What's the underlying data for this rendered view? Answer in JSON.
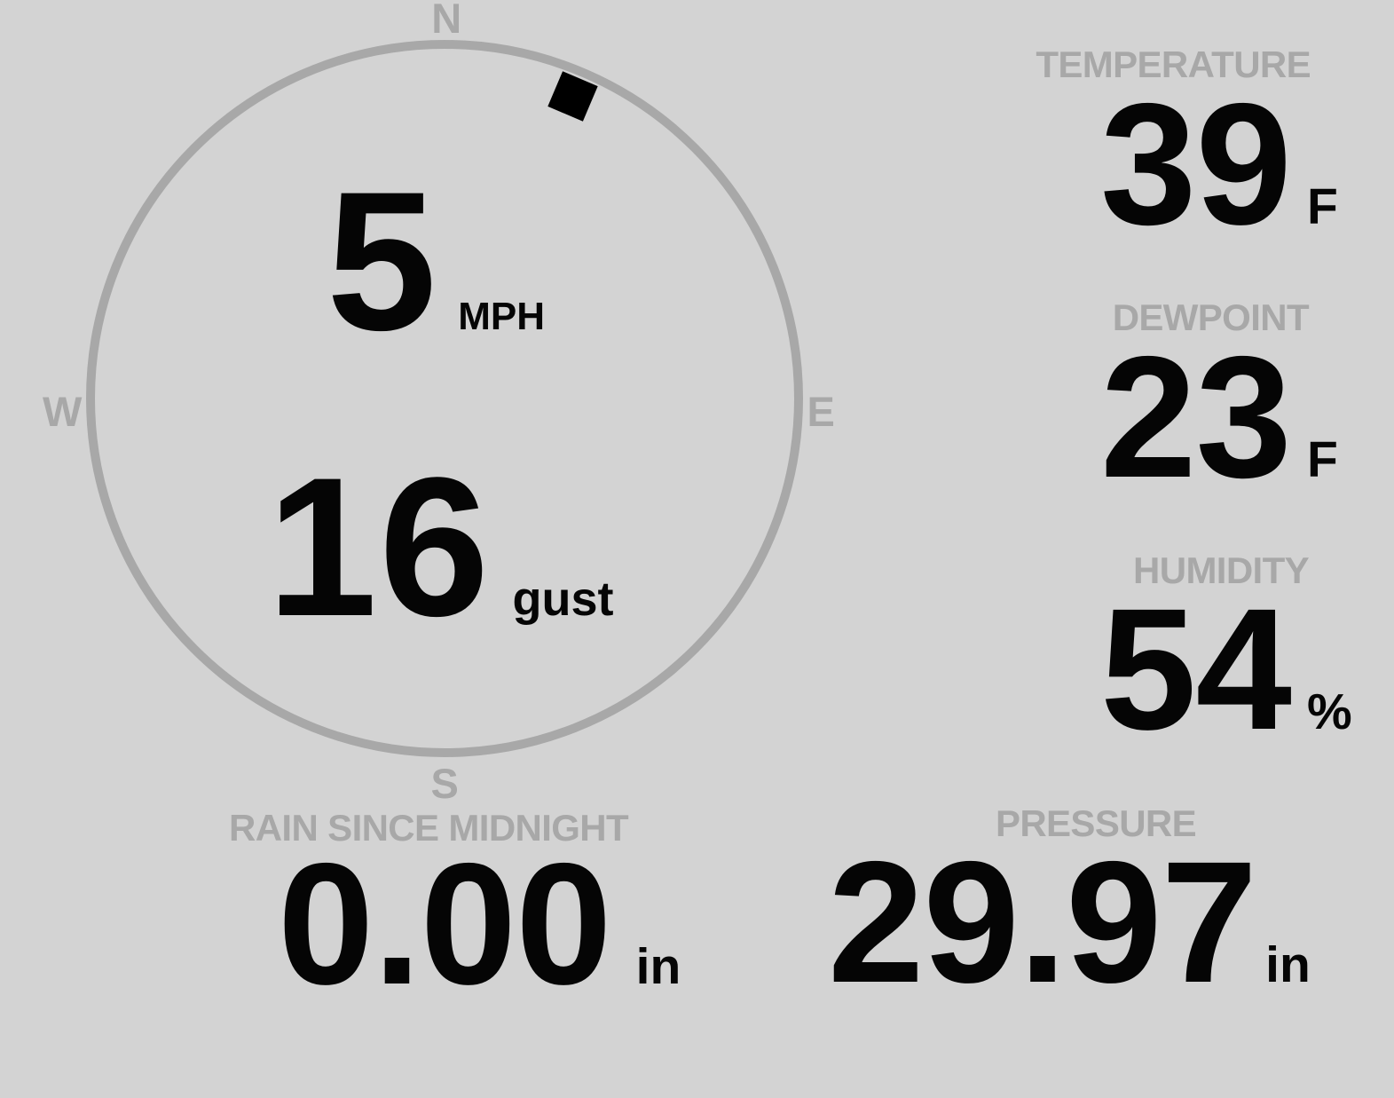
{
  "colors": {
    "background": "#d3d3d3",
    "muted_gray": "#a8a8a8",
    "value_black": "#050505"
  },
  "compass": {
    "north_label": "N",
    "east_label": "E",
    "south_label": "S",
    "west_label": "W",
    "wind_direction_deg": 23,
    "speed": {
      "value": "5",
      "unit": "MPH"
    },
    "gust": {
      "value": "16",
      "unit": "gust"
    }
  },
  "metrics": {
    "temperature": {
      "label": "TEMPERATURE",
      "value": "39",
      "unit": "F"
    },
    "dewpoint": {
      "label": "DEWPOINT",
      "value": "23",
      "unit": "F"
    },
    "humidity": {
      "label": "HUMIDITY",
      "value": "54",
      "unit": "%"
    },
    "rain": {
      "label": "RAIN SINCE MIDNIGHT",
      "value": "0.00",
      "unit": "in"
    },
    "pressure": {
      "label": "PRESSURE",
      "value": "29.97",
      "unit": "in"
    }
  }
}
